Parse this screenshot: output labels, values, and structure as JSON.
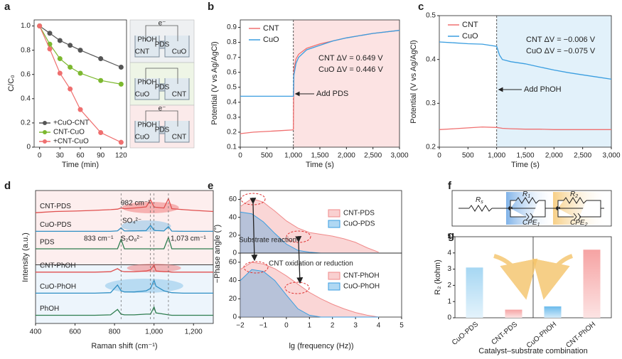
{
  "chart_data": [
    {
      "label": "a",
      "type": "line",
      "markers": true,
      "x_label": "Time (min)",
      "y_label": "C/C₀",
      "x": [
        0,
        15,
        30,
        45,
        60,
        90,
        120
      ],
      "series": [
        {
          "name": "+CuO-CNT",
          "color": "#555555",
          "values": [
            1.0,
            0.94,
            0.88,
            0.84,
            0.8,
            0.73,
            0.66
          ]
        },
        {
          "name": "CNT-CuO",
          "color": "#7cb82f",
          "values": [
            1.0,
            0.85,
            0.73,
            0.66,
            0.61,
            0.55,
            0.52
          ]
        },
        {
          "name": "+CNT-CuO",
          "color": "#ef6f6f",
          "values": [
            1.0,
            0.81,
            0.61,
            0.48,
            0.31,
            0.12,
            0.04
          ]
        }
      ],
      "xlim": [
        -8,
        128
      ],
      "xticks": [
        0,
        30,
        60,
        90,
        120
      ],
      "ylim": [
        0,
        1.05
      ],
      "yticks": [
        0,
        0.2,
        0.4,
        0.6,
        0.8,
        {
          "value": 1,
          "label": "1.0"
        }
      ],
      "inset": [
        {
          "labels": [
            "e⁻",
            "PhOH",
            "PDS",
            "CNT",
            "CuO"
          ]
        },
        {
          "labels": [
            "PhOH",
            "PDS",
            "CuO",
            "CNT"
          ]
        },
        {
          "labels": [
            "e⁻",
            "PhOH",
            "PDS",
            "CuO",
            "CNT"
          ]
        }
      ]
    },
    {
      "label": "b",
      "type": "line",
      "x_label": "Time (s)",
      "y_label": "Potential (V vs Ag/AgCl)",
      "x": [
        0,
        250,
        500,
        750,
        990,
        1000,
        1010,
        1050,
        1100,
        1250,
        1500,
        1750,
        2000,
        2500,
        3000
      ],
      "series": [
        {
          "name": "CNT",
          "color": "#f07070",
          "values": [
            0.19,
            0.2,
            0.205,
            0.21,
            0.215,
            0.22,
            0.62,
            0.69,
            0.72,
            0.76,
            0.79,
            0.81,
            0.83,
            0.86,
            0.88
          ]
        },
        {
          "name": "CuO",
          "color": "#3a9ee0",
          "values": [
            0.44,
            0.44,
            0.44,
            0.44,
            0.44,
            0.44,
            0.58,
            0.66,
            0.7,
            0.75,
            0.78,
            0.81,
            0.83,
            0.86,
            0.88
          ]
        }
      ],
      "xlim": [
        0,
        3000
      ],
      "xticks": [
        0,
        500,
        {
          "value": 1000,
          "label": "1,000"
        },
        {
          "value": 1500,
          "label": "1,500"
        },
        {
          "value": 2000,
          "label": "2,000"
        },
        {
          "value": 2500,
          "label": "2,500"
        },
        {
          "value": 3000,
          "label": "3,000"
        }
      ],
      "ylim": [
        0.1,
        0.95
      ],
      "yticks": [
        0.1,
        0.2,
        0.3,
        0.4,
        0.5,
        0.6,
        0.7,
        0.8,
        0.9
      ],
      "event": {
        "text": "Add PDS",
        "x": 1000
      },
      "annotations": [
        "CNT ΔV = 0.649 V",
        "CuO ΔV = 0.446 V"
      ]
    },
    {
      "label": "c",
      "type": "line",
      "x_label": "Time (s)",
      "y_label": "Potential (V vs Ag/AgCl)",
      "x": [
        0,
        250,
        500,
        750,
        1000,
        1050,
        1100,
        1250,
        1500,
        1750,
        2000,
        2250,
        2500,
        2750,
        3000
      ],
      "series": [
        {
          "name": "CNT",
          "color": "#f07070",
          "values": [
            0.24,
            0.242,
            0.244,
            0.246,
            0.245,
            0.244,
            0.243,
            0.242,
            0.241,
            0.241,
            0.24,
            0.24,
            0.24,
            0.24,
            0.24
          ]
        },
        {
          "name": "CuO",
          "color": "#3a9ee0",
          "values": [
            0.44,
            0.438,
            0.436,
            0.435,
            0.43,
            0.41,
            0.4,
            0.395,
            0.39,
            0.383,
            0.376,
            0.37,
            0.365,
            0.36,
            0.355
          ]
        }
      ],
      "xlim": [
        0,
        3000
      ],
      "xticks": [
        0,
        500,
        {
          "value": 1000,
          "label": "1,000"
        },
        {
          "value": 1500,
          "label": "1,500"
        },
        {
          "value": 2000,
          "label": "2,000"
        },
        {
          "value": 2500,
          "label": "2,500"
        },
        {
          "value": 3000,
          "label": "3,000"
        }
      ],
      "ylim": [
        0.2,
        0.5
      ],
      "yticks": [
        0.2,
        0.3,
        0.4,
        0.5
      ],
      "event": {
        "text": "Add PhOH",
        "x": 1000
      },
      "annotations": [
        "CNT ΔV = −0.006 V",
        "CuO ΔV = −0.075 V"
      ]
    },
    {
      "label": "d",
      "type": "line",
      "x_label": "Raman shift (cm⁻¹)",
      "y_label": "Intensity (a.u.)",
      "x": [
        400,
        500,
        600,
        700,
        780,
        815,
        833,
        850,
        900,
        960,
        982,
        1000,
        1010,
        1050,
        1073,
        1090,
        1150,
        1200,
        1300
      ],
      "series": [
        {
          "name": "CNT-PDS",
          "color": "#e0504f",
          "values": [
            5.65,
            5.7,
            5.72,
            5.75,
            5.78,
            5.8,
            5.85,
            5.82,
            5.85,
            5.9,
            6.2,
            5.9,
            5.88,
            5.85,
            6.25,
            5.82,
            5.78,
            5.75,
            5.7
          ]
        },
        {
          "name": "CuO-PDS",
          "color": "#2f8fc4",
          "values": [
            4.85,
            4.85,
            4.85,
            4.85,
            4.85,
            4.87,
            5.0,
            4.87,
            4.87,
            4.88,
            5.1,
            4.9,
            4.88,
            4.87,
            5.05,
            4.86,
            4.85,
            4.85,
            4.85
          ]
        },
        {
          "name": "PDS",
          "color": "#2e7d4f",
          "values": [
            4.1,
            4.1,
            4.1,
            4.1,
            4.1,
            4.1,
            4.5,
            4.1,
            4.1,
            4.1,
            4.1,
            4.1,
            4.1,
            4.1,
            4.6,
            4.1,
            4.1,
            4.1,
            4.1
          ]
        },
        {
          "name": "CNT-PhOH",
          "color": "#e0504f",
          "values": [
            3.1,
            3.1,
            3.1,
            3.1,
            3.12,
            3.25,
            3.15,
            3.12,
            3.12,
            3.15,
            3.2,
            3.4,
            3.15,
            3.12,
            3.12,
            3.1,
            3.1,
            3.1,
            3.1
          ]
        },
        {
          "name": "CuO-PhOH",
          "color": "#2f8fc4",
          "values": [
            2.2,
            2.2,
            2.2,
            2.2,
            2.22,
            2.55,
            2.3,
            2.25,
            2.25,
            2.3,
            2.4,
            2.75,
            2.5,
            2.3,
            2.25,
            2.22,
            2.2,
            2.2,
            2.2
          ]
        },
        {
          "name": "PhOH",
          "color": "#2e7d4f",
          "values": [
            1.25,
            1.25,
            1.25,
            1.25,
            1.27,
            1.5,
            1.3,
            1.27,
            1.27,
            1.3,
            1.3,
            1.6,
            1.35,
            1.3,
            1.27,
            1.25,
            1.25,
            1.25,
            1.25
          ]
        }
      ],
      "xlim": [
        400,
        1300
      ],
      "xticks": [
        400,
        600,
        800,
        {
          "value": 1000,
          "label": "1,000"
        },
        {
          "value": 1200,
          "label": "1,200"
        }
      ],
      "ylim": [
        0.9,
        6.6
      ],
      "annotations": [
        "982 cm⁻¹",
        "SO₄²⁻",
        "833 cm⁻¹",
        "S₂O₈²⁻",
        "1,073 cm⁻¹"
      ]
    },
    {
      "label": "e",
      "type": "area",
      "x_label": "lg (frequency (Hz))",
      "y_label": "−Phase angle (°)",
      "x": [
        -2,
        -1.5,
        -1,
        -0.5,
        0,
        0.5,
        1,
        1.5,
        2,
        2.5,
        3,
        3.5,
        4
      ],
      "xlim": [
        -2,
        5
      ],
      "xticks": [
        {
          "value": -2,
          "label": "−2"
        },
        {
          "value": -1,
          "label": "−1"
        },
        0,
        1,
        2,
        3,
        4,
        5
      ],
      "subplots": [
        {
          "ylim": [
            0,
            70
          ],
          "yticks": [
            0,
            20,
            40,
            60
          ],
          "series": [
            {
              "name": "CNT-PDS",
              "color": "#f08a8a",
              "values": [
                52,
                61,
                57,
                47,
                36,
                28,
                23,
                21,
                19,
                16,
                12,
                6,
                1
              ]
            },
            {
              "name": "CuO-PDS",
              "color": "#3a9ee0",
              "values": [
                46,
                44,
                35,
                22,
                10,
                3,
                1,
                0,
                0,
                0,
                0,
                0,
                0
              ]
            }
          ]
        },
        {
          "ylim": [
            0,
            70
          ],
          "yticks": [
            0,
            20,
            40,
            60
          ],
          "series": [
            {
              "name": "CNT-PhOH",
              "color": "#f08a8a",
              "values": [
                52,
                60,
                58,
                53,
                45,
                36,
                27,
                20,
                14,
                9,
                5,
                2,
                0
              ]
            },
            {
              "name": "CuO-PhOH",
              "color": "#3a9ee0",
              "values": [
                40,
                52,
                50,
                40,
                24,
                9,
                2,
                0,
                0,
                0,
                0,
                0,
                0
              ]
            }
          ]
        }
      ],
      "annotations": [
        "Substrate reaction",
        "CNT oxidation or reduction"
      ]
    },
    {
      "label": "f",
      "type": "diagram",
      "elements": [
        {
          "main": "R",
          "sub": "s"
        },
        {
          "main": "R",
          "sub": "1"
        },
        {
          "main": "CPE",
          "sub": "1"
        },
        {
          "main": "R",
          "sub": "2"
        },
        {
          "main": "CPE",
          "sub": "2"
        }
      ]
    },
    {
      "label": "g",
      "type": "bar",
      "x_label": "Catalyst–substrate combination",
      "y_label": "R₂ (kohm)",
      "categories": [
        "CuO-PDS",
        "CNT-PDS",
        "CuO-PhOH",
        "CNT-PhOH"
      ],
      "values": [
        3.1,
        0.5,
        0.7,
        4.2
      ],
      "colors": [
        "#a6d7f3",
        "#f6a3a3",
        "#6bbbec",
        "#f6a3a3"
      ],
      "ylim": [
        0,
        5
      ],
      "yticks": [
        0,
        1,
        2,
        3,
        4,
        5
      ]
    }
  ]
}
